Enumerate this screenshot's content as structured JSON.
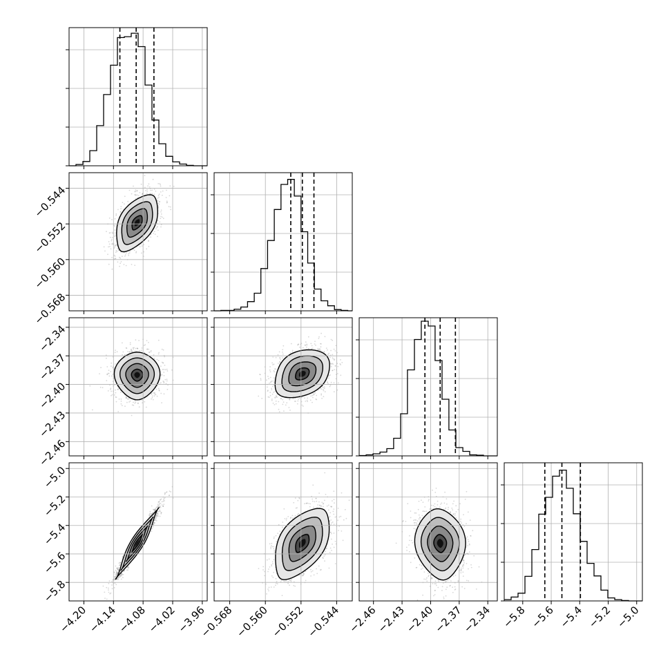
{
  "chart_data": {
    "type": "corner",
    "grid": true,
    "parameters": [
      {
        "axis_range": [
          -4.23,
          -3.95
        ],
        "tick_values": [
          -4.2,
          -4.14,
          -4.08,
          -4.02,
          -3.96
        ],
        "tick_labels": [
          "−4.20",
          "−4.14",
          "−4.08",
          "−4.02",
          "−3.96"
        ],
        "quantiles": [
          -4.127,
          -4.094,
          -4.058
        ],
        "histogram": {
          "edges": [
            -4.23,
            -4.216,
            -4.202,
            -4.188,
            -4.174,
            -4.16,
            -4.146,
            -4.132,
            -4.118,
            -4.104,
            -4.09,
            -4.076,
            -4.062,
            -4.048,
            -4.034,
            -4.02,
            -4.006,
            -3.992,
            -3.978,
            -3.964,
            -3.95
          ],
          "counts": [
            0,
            3,
            10,
            35,
            93,
            165,
            233,
            297,
            299,
            307,
            276,
            187,
            106,
            51,
            22,
            9,
            4,
            1,
            0,
            0
          ],
          "max_count": 320
        }
      },
      {
        "axis_range": [
          -0.5715,
          -0.5405
        ],
        "tick_values": [
          -0.568,
          -0.56,
          -0.552,
          -0.544
        ],
        "tick_labels": [
          "−0.568",
          "−0.560",
          "−0.552",
          "−0.544"
        ],
        "quantiles": [
          -0.5543,
          -0.5517,
          -0.5491
        ],
        "histogram": {
          "edges": [
            -0.5715,
            -0.57,
            -0.5685,
            -0.567,
            -0.5655,
            -0.564,
            -0.5625,
            -0.561,
            -0.5595,
            -0.558,
            -0.5565,
            -0.555,
            -0.5535,
            -0.552,
            -0.5505,
            -0.549,
            -0.5475,
            -0.546,
            -0.5445,
            -0.543,
            -0.5415,
            -0.5405
          ],
          "counts": [
            0,
            1,
            1,
            4,
            9,
            22,
            42,
            101,
            168,
            242,
            302,
            314,
            274,
            189,
            114,
            52,
            24,
            12,
            3,
            1,
            0
          ],
          "max_count": 330
        }
      },
      {
        "axis_range": [
          -2.475,
          -2.33
        ],
        "tick_values": [
          -2.46,
          -2.43,
          -2.4,
          -2.37,
          -2.34
        ],
        "tick_labels": [
          "−2.46",
          "−2.43",
          "−2.40",
          "−2.37",
          "−2.34"
        ],
        "quantiles": [
          -2.406,
          -2.39,
          -2.374
        ],
        "histogram": {
          "edges": [
            -2.475,
            -2.4677,
            -2.4605,
            -2.4532,
            -2.446,
            -2.4388,
            -2.4315,
            -2.4243,
            -2.417,
            -2.4098,
            -2.4025,
            -2.3953,
            -2.388,
            -2.3808,
            -2.3735,
            -2.3662,
            -2.359,
            -2.3517,
            -2.3445,
            -2.3372,
            -2.33
          ],
          "counts": [
            1,
            3,
            6,
            11,
            21,
            51,
            122,
            249,
            337,
            390,
            376,
            276,
            164,
            75,
            24,
            13,
            3,
            2,
            0,
            0
          ],
          "max_count": 400
        }
      },
      {
        "axis_range": [
          -5.93,
          -4.96
        ],
        "tick_values": [
          -5.8,
          -5.6,
          -5.4,
          -5.2,
          -5.0
        ],
        "tick_labels": [
          "−5.8",
          "−5.6",
          "−5.4",
          "−5.2",
          "−5.0"
        ],
        "quantiles": [
          -5.645,
          -5.525,
          -5.395
        ],
        "histogram": {
          "edges": [
            -5.93,
            -5.8815,
            -5.833,
            -5.7845,
            -5.736,
            -5.6875,
            -5.639,
            -5.5905,
            -5.542,
            -5.4935,
            -5.445,
            -5.3965,
            -5.348,
            -5.2995,
            -5.251,
            -5.2025,
            -5.154,
            -5.1055,
            -5.057,
            -5.0085,
            -4.96
          ],
          "counts": [
            3,
            9,
            18,
            57,
            119,
            201,
            240,
            289,
            303,
            261,
            202,
            138,
            87,
            58,
            25,
            7,
            3,
            1,
            0,
            0
          ],
          "max_count": 320
        }
      }
    ],
    "pairs": [
      {
        "x_param": 0,
        "y_param": 1,
        "center": [
          -4.092,
          -0.5517
        ],
        "sigma": [
          0.022,
          0.0032
        ],
        "correlation": 0.55
      },
      {
        "x_param": 0,
        "y_param": 2,
        "center": [
          -4.092,
          -2.39
        ],
        "sigma": [
          0.022,
          0.0125
        ],
        "correlation": 0.0
      },
      {
        "x_param": 1,
        "y_param": 2,
        "center": [
          -0.5517,
          -2.389
        ],
        "sigma": [
          0.0032,
          0.0125
        ],
        "correlation": 0.3
      },
      {
        "x_param": 0,
        "y_param": 3,
        "center": [
          -4.092,
          -5.525
        ],
        "sigma": [
          0.022,
          0.125
        ],
        "correlation": 0.97
      },
      {
        "x_param": 1,
        "y_param": 3,
        "center": [
          -0.5517,
          -5.525
        ],
        "sigma": [
          0.0032,
          0.125
        ],
        "correlation": 0.55
      },
      {
        "x_param": 2,
        "y_param": 3,
        "center": [
          -2.39,
          -5.525
        ],
        "sigma": [
          0.0125,
          0.125
        ],
        "correlation": -0.1
      }
    ],
    "contour_levels_sigma": [
      0.5,
      1.0,
      1.5,
      2.0
    ],
    "colors": {
      "line": "#000000",
      "grid": "#b0b0b0",
      "scatter": "#8c8c8c",
      "density_dark": "#000000",
      "density_light": "#ffffff"
    }
  }
}
